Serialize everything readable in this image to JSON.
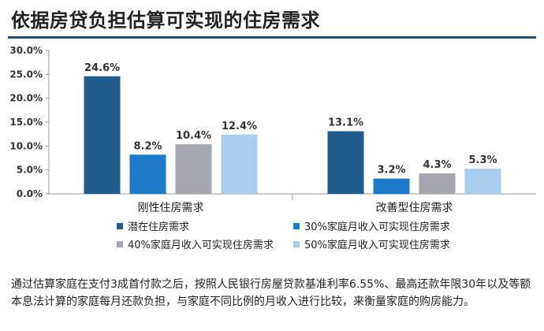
{
  "title": "依据房贷负担估算可实现的住房需求",
  "caption": "通过估算家庭在支付3成首付款之后，按照人民银行房屋贷款基准利率6.55%、最高还款年限30年以及等额本息法计算的家庭每月还款负担，与家庭不同比例的月收入进行比较，来衡量家庭的购房能力。",
  "chart_data": {
    "type": "bar",
    "categories": [
      "刚性住房需求",
      "改善型住房需求"
    ],
    "series": [
      {
        "name": "潜在住房需求",
        "values": [
          24.6,
          13.1
        ],
        "labels": [
          "24.6%",
          "13.1%"
        ],
        "color": "#1f5c8b"
      },
      {
        "name": "30%家庭月收入可实现住房需求",
        "values": [
          8.2,
          3.2
        ],
        "labels": [
          "8.2%",
          "3.2%"
        ],
        "color": "#1d7ac8"
      },
      {
        "name": "40%家庭月收入可实现住房需求",
        "values": [
          10.4,
          4.3
        ],
        "labels": [
          "10.4%",
          "4.3%"
        ],
        "color": "#a6a6ae"
      },
      {
        "name": "50%家庭月收入可实现住房需求",
        "values": [
          12.4,
          5.3
        ],
        "labels": [
          "12.4%",
          "5.3%"
        ],
        "color": "#a9cdef"
      }
    ],
    "yticks": [
      "0.0%",
      "5.0%",
      "10.0%",
      "15.0%",
      "20.0%",
      "25.0%",
      "30.0%"
    ],
    "ylim": [
      0,
      30
    ],
    "legend": "bottom",
    "grid": false
  }
}
